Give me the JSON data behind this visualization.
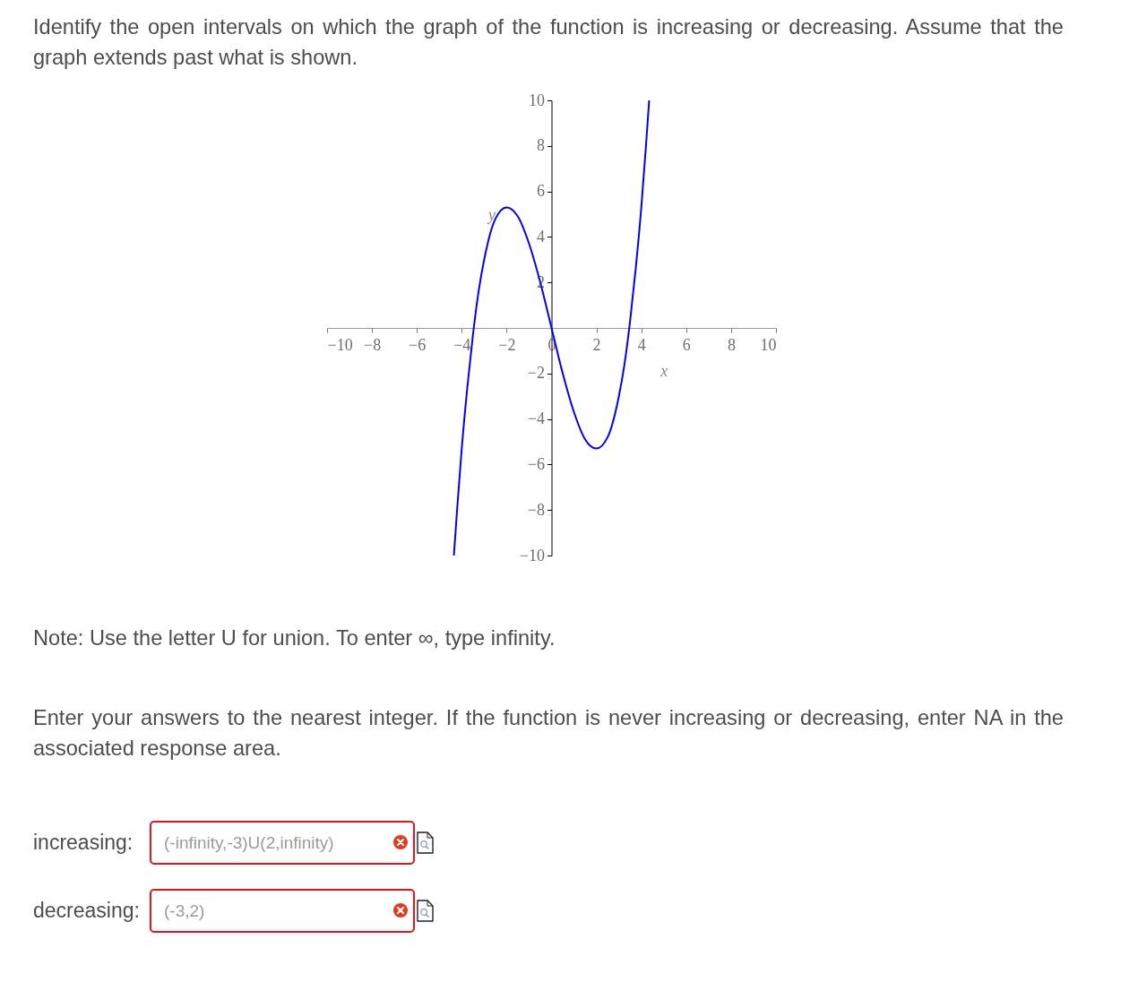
{
  "chart_data": {
    "type": "line",
    "title": "Identify the open intervals on which the graph of the function is increasing or decreasing. Assume that the graph extends past what is shown.",
    "xlabel": "x",
    "ylabel": "y",
    "color": "#0000ff",
    "x": [
      -4.35,
      -4.2,
      -4,
      -3.75,
      -3.5,
      -3.25,
      -3,
      -2.5,
      -2,
      -1.5,
      -1,
      -0.5,
      0,
      0.5,
      1,
      1.5,
      2,
      2.5,
      3,
      3.25,
      3.5,
      3.75,
      4,
      4.2,
      4.35
    ],
    "values": [
      -10,
      -7.9,
      -5.3,
      -2.6,
      -0.3,
      1.6,
      3,
      4.8,
      5.3,
      4.9,
      3.7,
      2,
      0,
      -2,
      -3.7,
      -4.9,
      -5.3,
      -4.8,
      -3,
      -1.6,
      0.3,
      2.6,
      5.3,
      7.9,
      10
    ],
    "xlim": [
      -10,
      10
    ],
    "xticks": [
      -10,
      -8,
      -6,
      -4,
      -2,
      0,
      2,
      4,
      6,
      8,
      10
    ],
    "ylim": [
      -10,
      10
    ],
    "yticks": [
      -10,
      -8,
      -6,
      -4,
      -2,
      2,
      4,
      6,
      8,
      10
    ],
    "annotations": [
      "Note: Use the letter U for union. To enter ∞, type infinity.",
      "Enter your answers to the nearest integer. If the function is never increasing or decreasing, enter NA in the associated response area.",
      "increasing:",
      "(-infinity,-3)U(2,infinity)",
      "decreasing:",
      "(-3,2)"
    ]
  }
}
